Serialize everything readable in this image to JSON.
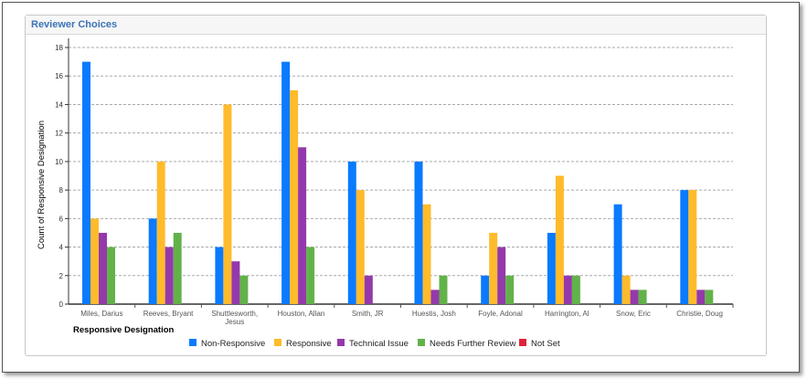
{
  "panel": {
    "title": "Reviewer Choices"
  },
  "chart_data": {
    "type": "bar",
    "title": "Reviewer Choices",
    "xlabel": "Responsive Designation",
    "ylabel": "Count of Responsive Designation",
    "ylim": [
      0,
      18
    ],
    "yticks": [
      "0",
      "2",
      "4",
      "6",
      "8",
      "10",
      "12",
      "14",
      "16",
      "18"
    ],
    "grid": true,
    "legend_position": "bottom",
    "categories": [
      [
        "Miles, Darius"
      ],
      [
        "Reeves, Bryant"
      ],
      [
        "Shuttlesworth,",
        "Jesus"
      ],
      [
        "Houston, Allan"
      ],
      [
        "Smith, JR"
      ],
      [
        "Huestis, Josh"
      ],
      [
        "Foyle, Adonal"
      ],
      [
        "Harrington, Al"
      ],
      [
        "Snow, Eric"
      ],
      [
        "Christie, Doug"
      ]
    ],
    "series": [
      {
        "name": "Non-Responsive",
        "color": "#0a7aff",
        "values": [
          17,
          6,
          4,
          17,
          10,
          10,
          2,
          5,
          7,
          8
        ]
      },
      {
        "name": "Responsive",
        "color": "#ffbb2b",
        "values": [
          6,
          10,
          14,
          15,
          8,
          7,
          5,
          9,
          2,
          8
        ]
      },
      {
        "name": "Technical Issue",
        "color": "#9439ab",
        "values": [
          5,
          4,
          3,
          11,
          2,
          1,
          4,
          2,
          1,
          1
        ]
      },
      {
        "name": "Needs Further Review",
        "color": "#62b24a",
        "values": [
          4,
          5,
          2,
          4,
          0,
          2,
          2,
          2,
          1,
          1
        ]
      },
      {
        "name": "Not Set",
        "color": "#e0223a",
        "values": [
          0,
          0,
          0,
          0,
          0,
          0,
          0,
          0,
          0,
          0
        ]
      }
    ]
  }
}
